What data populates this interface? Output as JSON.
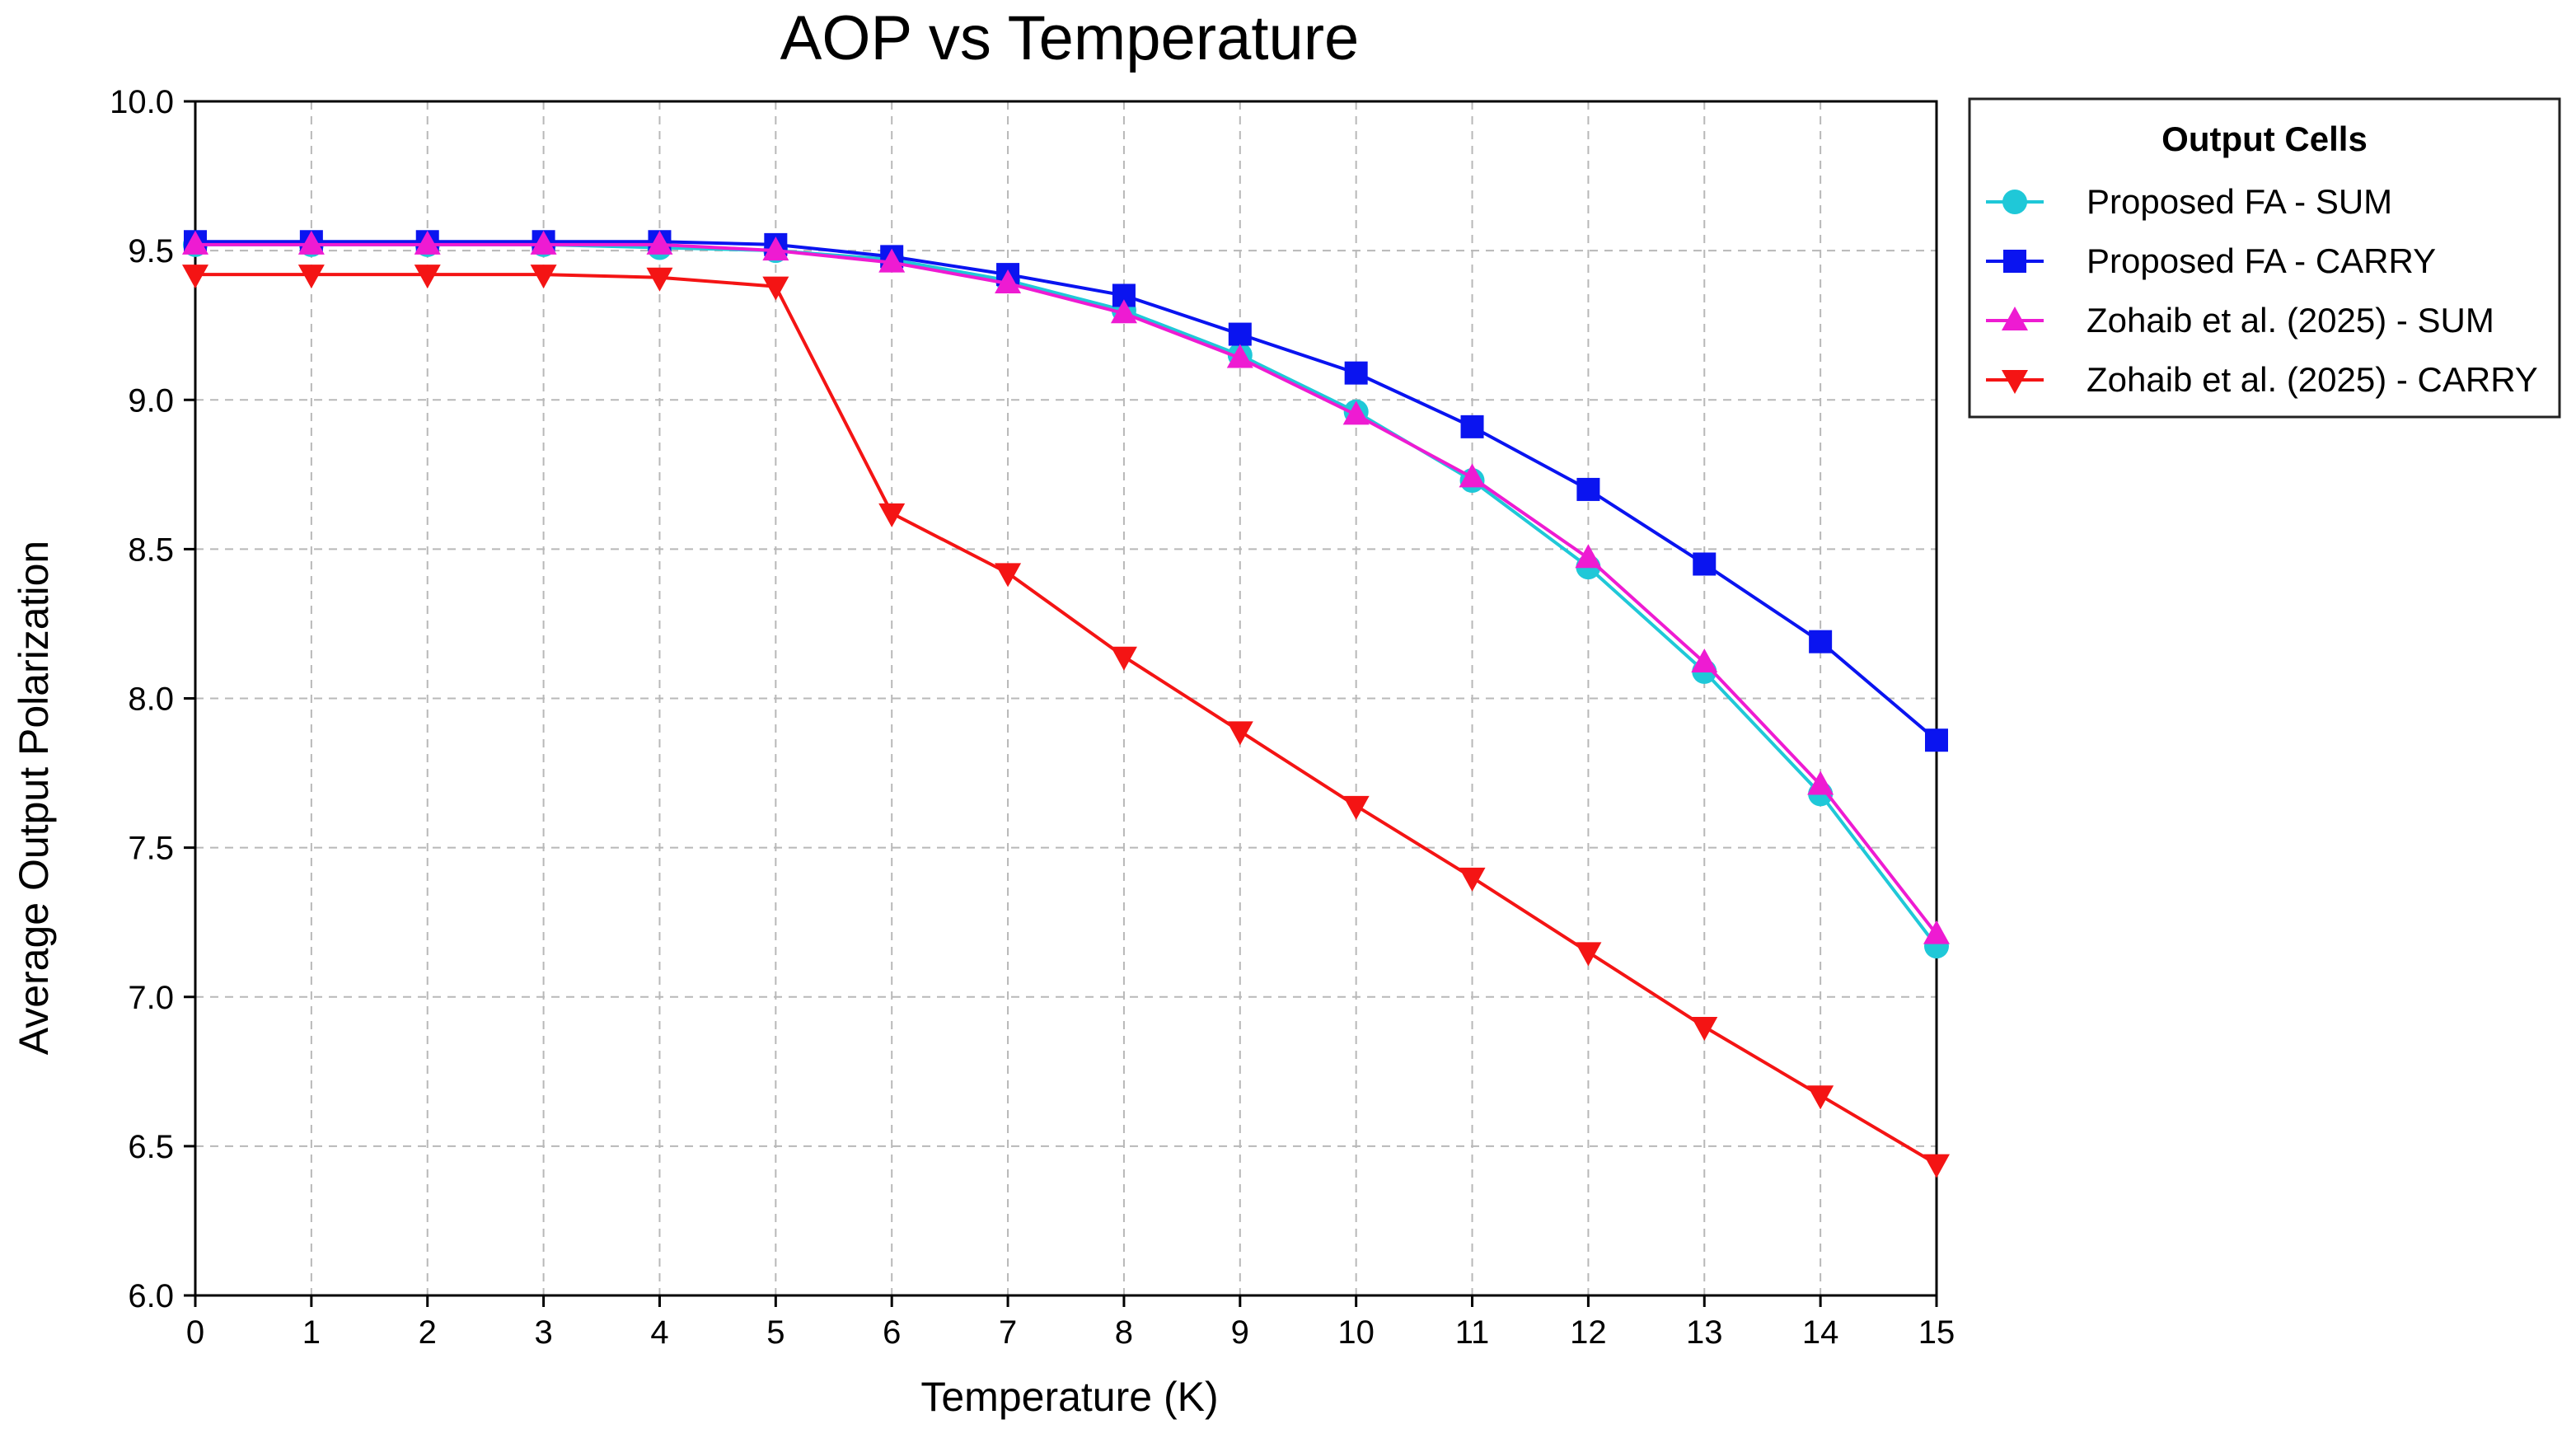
{
  "chart_data": {
    "type": "line",
    "title": "AOP vs Temperature",
    "xlabel": "Temperature (K)",
    "ylabel": "Average Output Polarization",
    "xlim": [
      0,
      15
    ],
    "ylim": [
      6.0,
      10.0
    ],
    "x": [
      0,
      1,
      2,
      3,
      4,
      5,
      6,
      7,
      8,
      9,
      10,
      11,
      12,
      13,
      14,
      15
    ],
    "x_ticks": [
      "0",
      "1",
      "2",
      "3",
      "4",
      "5",
      "6",
      "7",
      "8",
      "9",
      "10",
      "11",
      "12",
      "13",
      "14",
      "15"
    ],
    "y_ticks": [
      "6.0",
      "6.5",
      "7.0",
      "7.5",
      "8.0",
      "8.5",
      "9.0",
      "9.5",
      "10.0"
    ],
    "grid": true,
    "legend": {
      "title": "Output Cells",
      "position": "outside-right-top"
    },
    "series": [
      {
        "name": "Proposed FA - SUM",
        "color": "#1FC8D8",
        "marker": "circle",
        "values": [
          9.52,
          9.52,
          9.52,
          9.52,
          9.51,
          9.5,
          9.47,
          9.4,
          9.3,
          9.15,
          8.96,
          8.73,
          8.44,
          8.09,
          7.68,
          7.17
        ]
      },
      {
        "name": "Proposed FA - CARRY",
        "color": "#0A14F0",
        "marker": "square",
        "values": [
          9.53,
          9.53,
          9.53,
          9.53,
          9.53,
          9.52,
          9.48,
          9.42,
          9.35,
          9.22,
          9.09,
          8.91,
          8.7,
          8.45,
          8.19,
          7.86
        ]
      },
      {
        "name": "Zohaib et al. (2025) - SUM",
        "color": "#EE1BD2",
        "marker": "triangle-up",
        "values": [
          9.52,
          9.52,
          9.52,
          9.52,
          9.52,
          9.5,
          9.46,
          9.39,
          9.29,
          9.14,
          8.95,
          8.74,
          8.47,
          8.12,
          7.71,
          7.21
        ]
      },
      {
        "name": "Zohaib et al. (2025) - CARRY",
        "color": "#F41414",
        "marker": "triangle-down",
        "values": [
          9.42,
          9.42,
          9.42,
          9.42,
          9.41,
          9.38,
          8.62,
          8.42,
          8.14,
          7.89,
          7.64,
          7.4,
          7.15,
          6.9,
          6.67,
          6.44
        ]
      }
    ]
  }
}
